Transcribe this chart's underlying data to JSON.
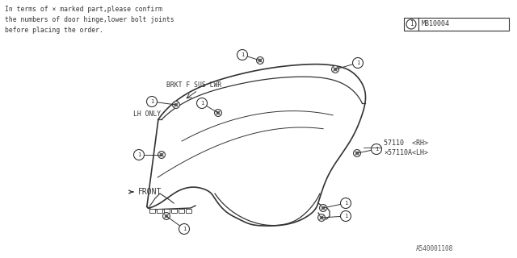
{
  "bg_color": "#ffffff",
  "line_color": "#333333",
  "text_color": "#333333",
  "note_text": "In terms of × marked part,please confirm\nthe numbers of door hinge,lower bolt joints\nbefore placing the order.",
  "part_number_main": "57110  <RH>",
  "part_number_lh": "×57110A<LH>",
  "label_brkt": "BRKT F SUS LWR",
  "label_lh": "LH ONLY",
  "footer": "A540001108",
  "box_label": "MB10004"
}
